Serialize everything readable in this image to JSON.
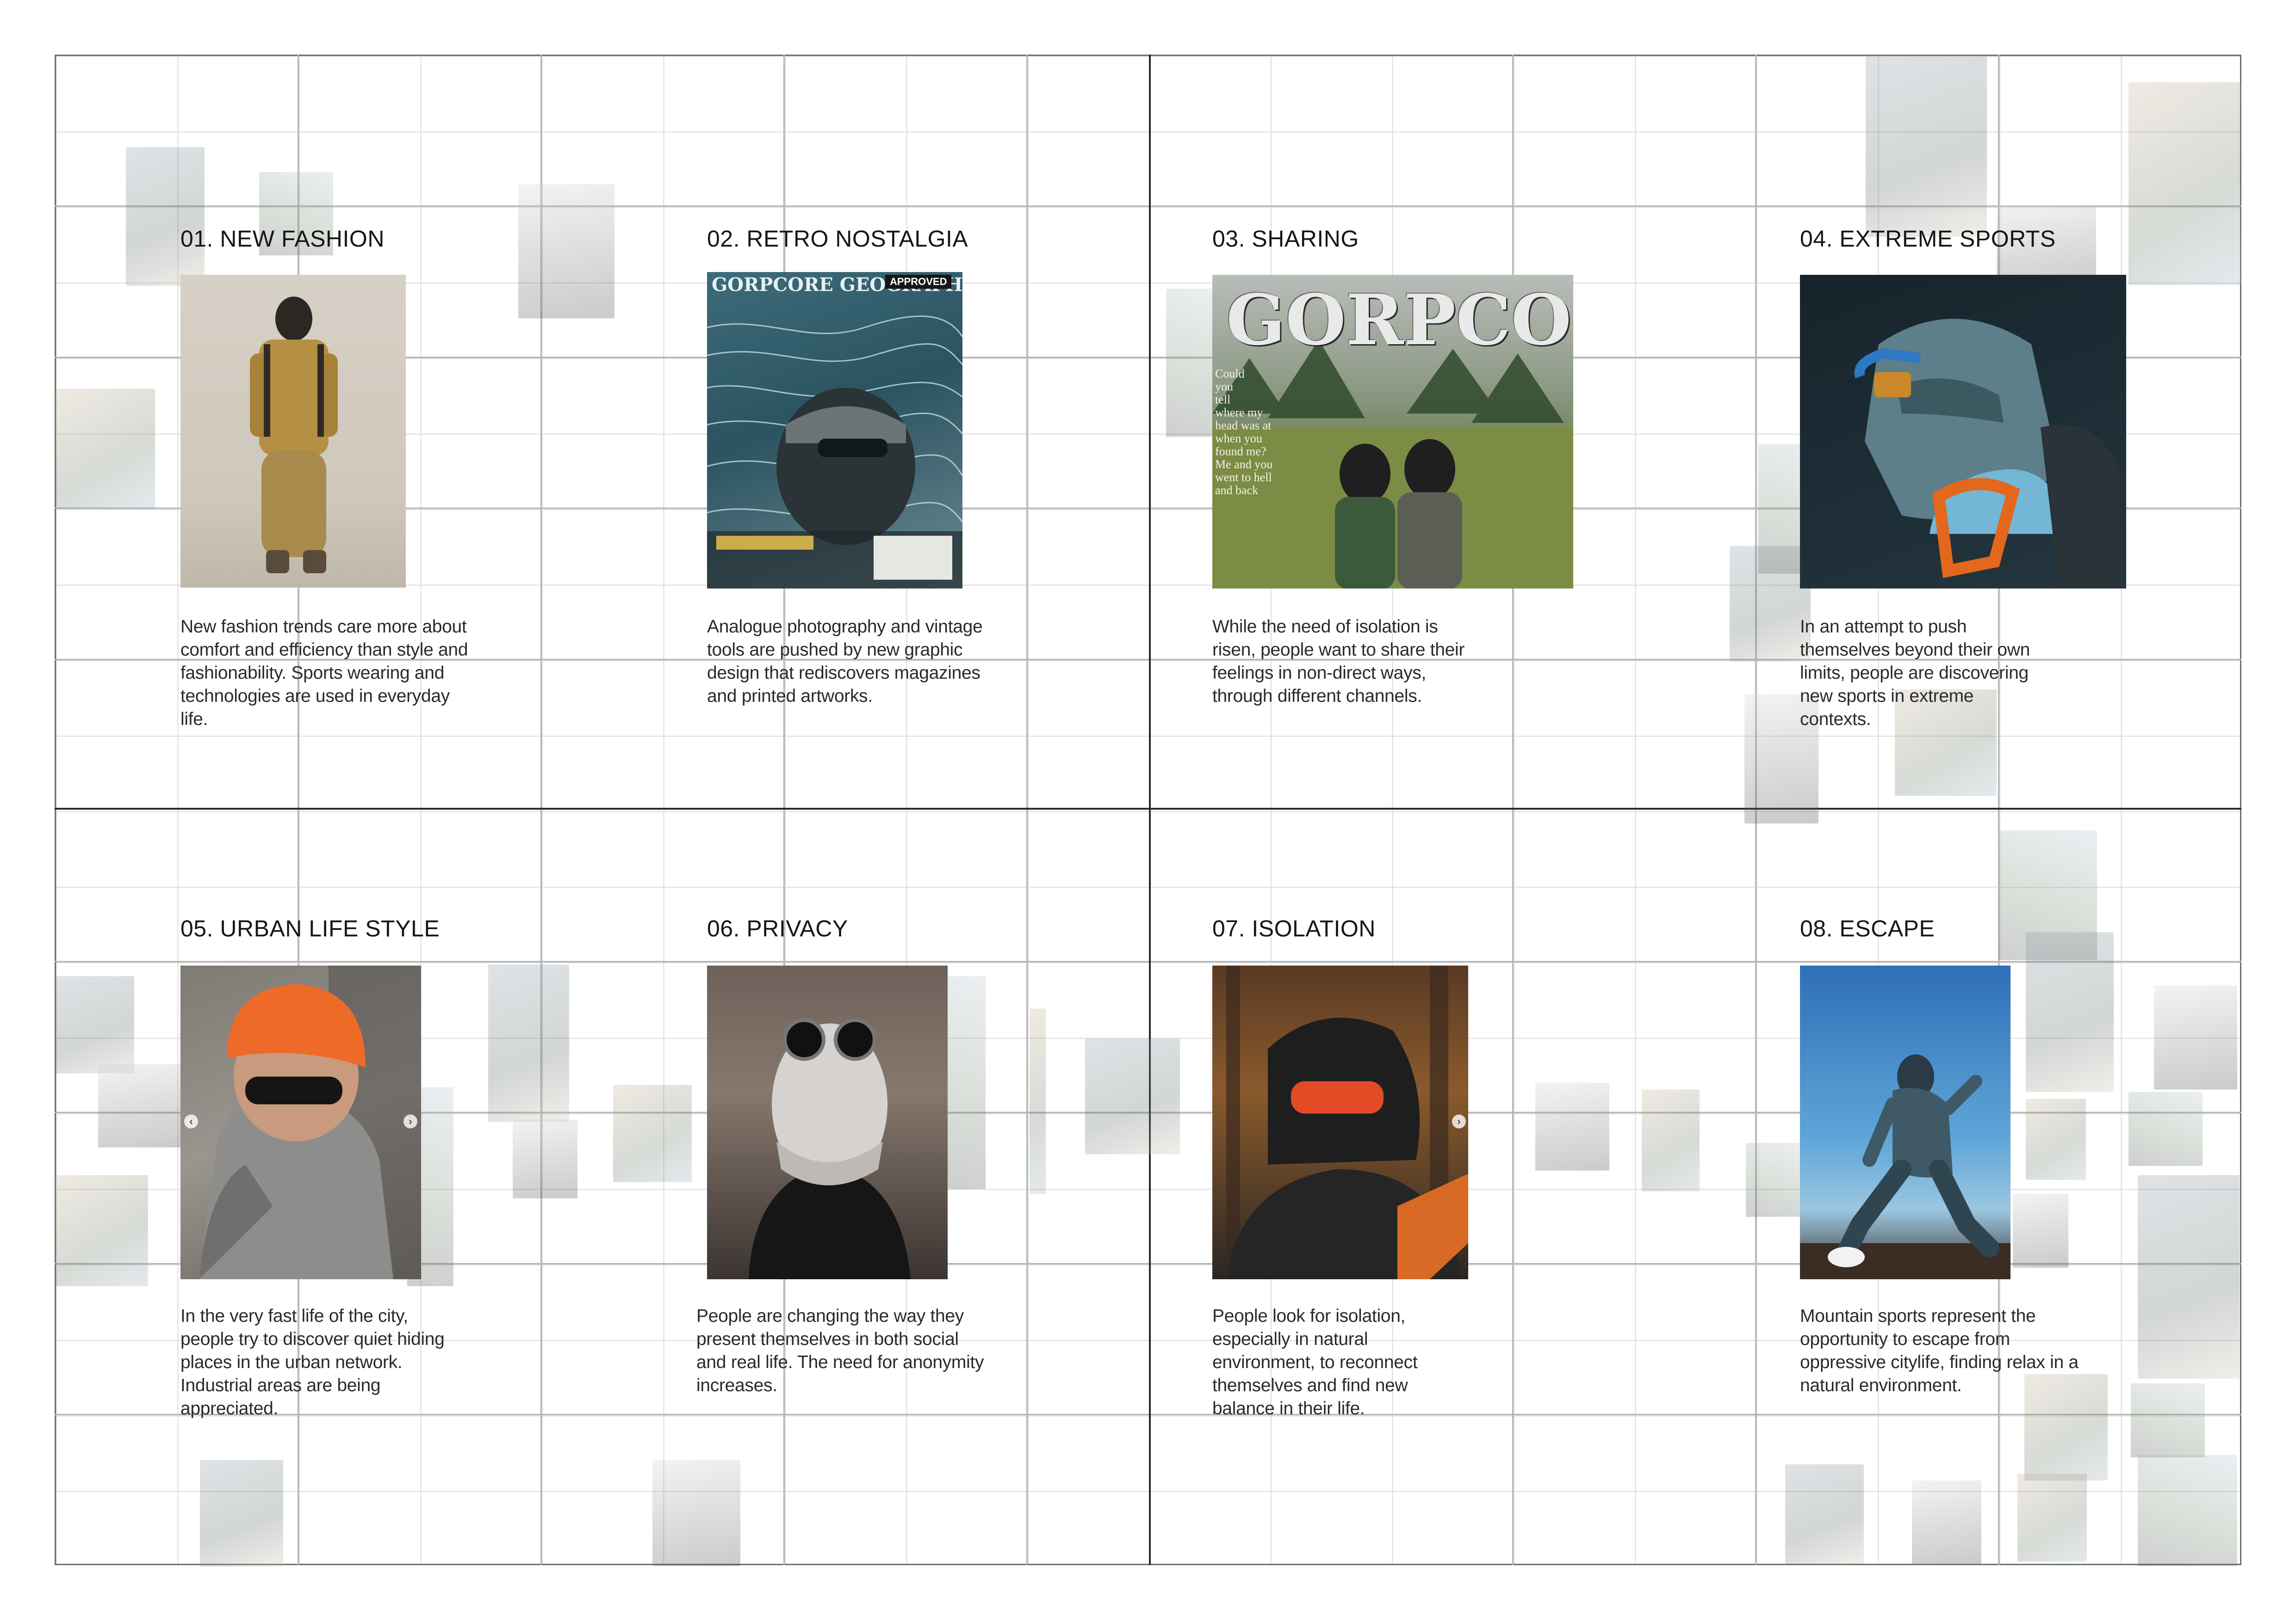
{
  "sections": [
    {
      "title": "01. NEW FASHION",
      "text": "New fashion trends care more about comfort and efficiency than style and fashionability. Sports wearing and technologies are used in everyday life."
    },
    {
      "title": "02. RETRO NOSTALGIA",
      "text": "Analogue photography and vintage tools are pushed by new graphic design that rediscovers magazines and printed artworks.",
      "photo": {
        "masthead": "GORPCORE GEOGRAPHY",
        "badge": "APPROVED"
      }
    },
    {
      "title": "03. SHARING",
      "text": "While the need of isolation is risen, people want to share their feelings in non-direct ways, through different channels.",
      "photo": {
        "headline": "GORPCORE",
        "poem": "Could\nyou\ntell\nwhere my\nhead was at\nwhen you\nfound me?\nMe and you\nwent to hell\nand back"
      }
    },
    {
      "title": "04. EXTREME SPORTS",
      "text": "In an attempt to push themselves beyond their own limits, people are discovering new sports in extreme contexts."
    },
    {
      "title": "05. URBAN LIFE STYLE",
      "text": "In the very fast life of the city, people try to discover quiet hiding places in the urban network. Industrial areas are being appreciated."
    },
    {
      "title": "06. PRIVACY",
      "text": "People are changing the way they present themselves in both social and real life. The need for anonymity increases."
    },
    {
      "title": "07. ISOLATION",
      "text": "People look for isolation, especially in natural environment, to reconnect themselves and find new balance in their life."
    },
    {
      "title": "08. ESCAPE",
      "text": "Mountain sports represent the opportunity to escape from oppressive citylife, finding relax in a natural environment."
    }
  ]
}
